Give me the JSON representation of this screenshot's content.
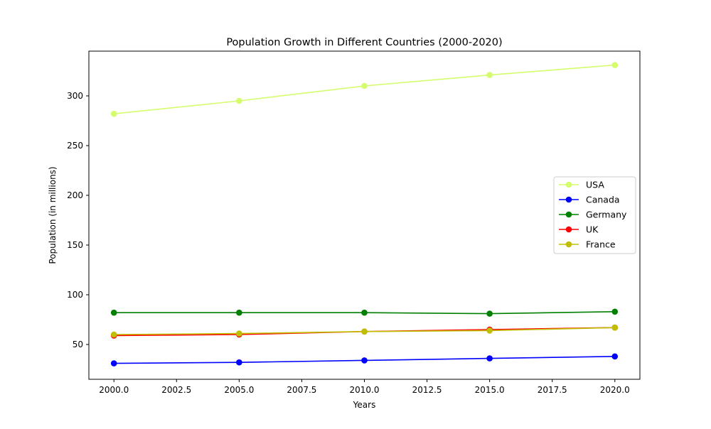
{
  "chart_data": {
    "type": "line",
    "title": "Population Growth in Different Countries (2000-2020)",
    "xlabel": "Years",
    "ylabel": "Population (in millions)",
    "x": [
      2000,
      2005,
      2010,
      2015,
      2020
    ],
    "xlim": [
      1999,
      2021
    ],
    "ylim": [
      15,
      345
    ],
    "xticks": [
      "2000.0",
      "2002.5",
      "2005.0",
      "2007.5",
      "2010.0",
      "2012.5",
      "2015.0",
      "2017.5",
      "2020.0"
    ],
    "yticks": [
      "50",
      "100",
      "150",
      "200",
      "250",
      "300"
    ],
    "grid": false,
    "legend_position": "center-right",
    "series": [
      {
        "name": "USA",
        "color": "#d4fc6c",
        "values": [
          282,
          295,
          310,
          321,
          331
        ]
      },
      {
        "name": "Canada",
        "color": "#0000ff",
        "values": [
          31,
          32,
          34,
          36,
          38
        ]
      },
      {
        "name": "Germany",
        "color": "#008000",
        "values": [
          82,
          82,
          82,
          81,
          83
        ]
      },
      {
        "name": "UK",
        "color": "#ff0000",
        "values": [
          59,
          60,
          63,
          65,
          67
        ]
      },
      {
        "name": "France",
        "color": "#bfbf00",
        "values": [
          60,
          61,
          63,
          64,
          67
        ]
      }
    ]
  }
}
